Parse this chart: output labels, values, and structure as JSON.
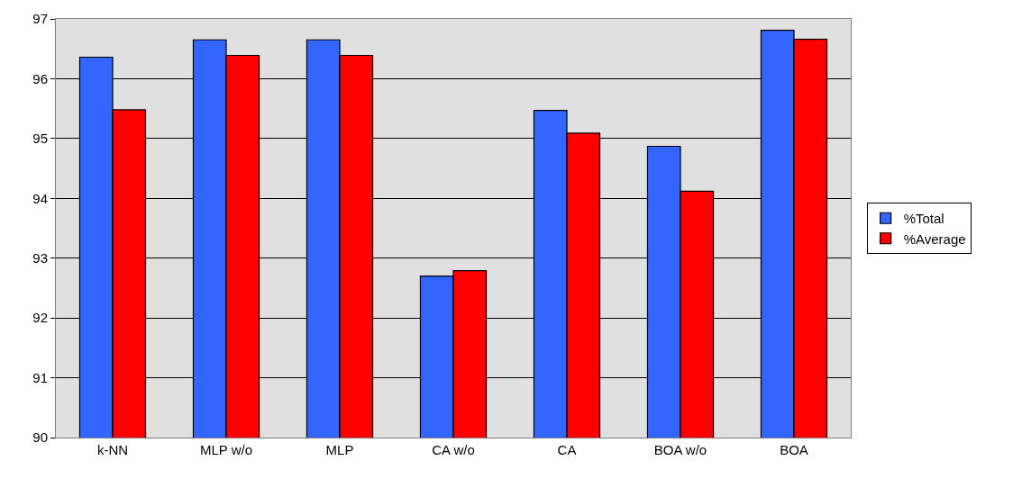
{
  "chart_data": {
    "type": "bar",
    "categories": [
      "k-NN",
      "MLP w/o",
      "MLP",
      "CA w/o",
      "CA",
      "BOA w/o",
      "BOA"
    ],
    "series": [
      {
        "name": "%Total",
        "color": "#3366ff",
        "values": [
          96.36,
          96.65,
          96.65,
          92.7,
          95.47,
          94.87,
          96.81
        ]
      },
      {
        "name": "%Average",
        "color": "#ff0000",
        "values": [
          95.48,
          96.39,
          96.39,
          92.79,
          95.09,
          94.12,
          96.66
        ]
      }
    ],
    "ylim": [
      90,
      97
    ],
    "yticks": [
      90,
      91,
      92,
      93,
      94,
      95,
      96,
      97
    ],
    "grid": "y",
    "legend": "right"
  }
}
